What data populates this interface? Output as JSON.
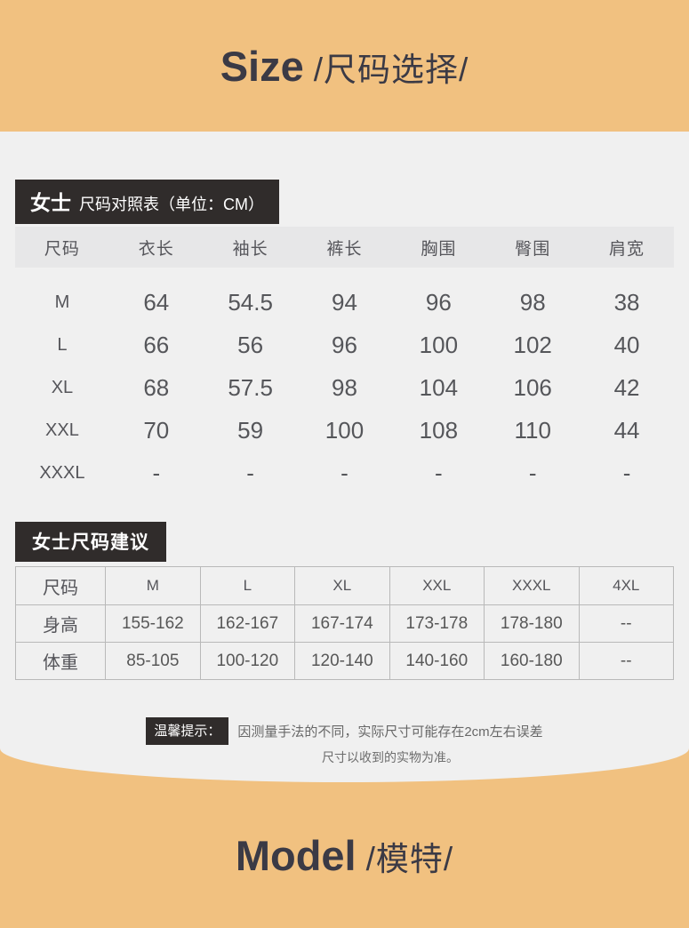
{
  "colors": {
    "banner_bg": "#f1c180",
    "panel_bg": "#f0f0f0",
    "badge_bg": "#302c2b",
    "title_text": "#3b3a45",
    "table_text": "#55565a"
  },
  "header": {
    "title_en": "Size",
    "title_cn": "/尺码选择/"
  },
  "size_table": {
    "badge_bold": "女士",
    "badge_rest": "尺码对照表（单位：CM）",
    "columns": [
      "尺码",
      "衣长",
      "袖长",
      "裤长",
      "胸围",
      "臀围",
      "肩宽"
    ],
    "rows": [
      {
        "size": "M",
        "values": [
          "64",
          "54.5",
          "94",
          "96",
          "98",
          "38"
        ]
      },
      {
        "size": "L",
        "values": [
          "66",
          "56",
          "96",
          "100",
          "102",
          "40"
        ]
      },
      {
        "size": "XL",
        "values": [
          "68",
          "57.5",
          "98",
          "104",
          "106",
          "42"
        ]
      },
      {
        "size": "XXL",
        "values": [
          "70",
          "59",
          "100",
          "108",
          "110",
          "44"
        ]
      },
      {
        "size": "XXXL",
        "values": [
          "-",
          "-",
          "-",
          "-",
          "-",
          "-"
        ]
      }
    ]
  },
  "suggest_table": {
    "badge": "女士尺码建议",
    "header": [
      "尺码",
      "M",
      "L",
      "XL",
      "XXL",
      "XXXL",
      "4XL"
    ],
    "rows": [
      {
        "label": "身高",
        "values": [
          "155-162",
          "162-167",
          "167-174",
          "173-178",
          "178-180",
          "--"
        ]
      },
      {
        "label": "体重",
        "values": [
          "85-105",
          "100-120",
          "120-140",
          "140-160",
          "160-180",
          "--"
        ]
      }
    ]
  },
  "tip": {
    "label": "温馨提示：",
    "line1": "因测量手法的不同，实际尺寸可能存在2cm左右误差",
    "line2": "尺寸以收到的实物为准。"
  },
  "footer": {
    "title_en": "Model",
    "title_cn": "/模特/"
  }
}
